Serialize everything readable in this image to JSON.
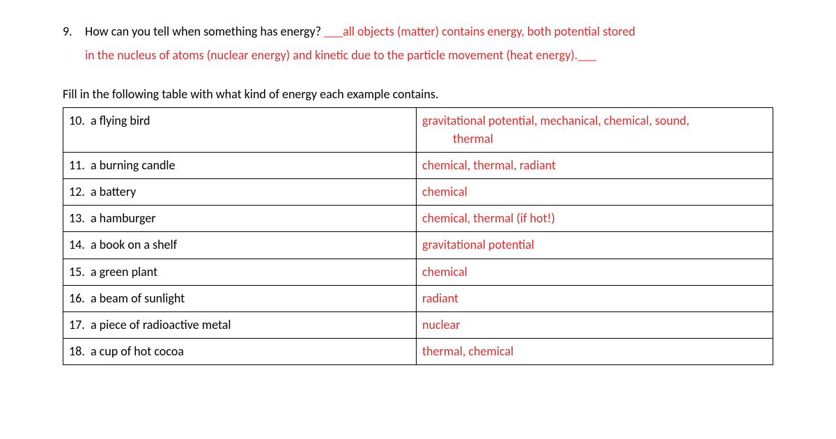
{
  "colors": {
    "text": "#000000",
    "answer": "#d62f2f",
    "background": "#ffffff",
    "border": "#000000"
  },
  "question9": {
    "number": "9.",
    "prompt": "How can you tell when something has energy? ",
    "blank_pre": "___",
    "answer_line1": "all objects (matter) contains energy, both potential stored",
    "answer_line2": "in the nucleus of atoms (nuclear energy) and kinetic due to the particle movement (heat energy).",
    "blank_post": "___"
  },
  "instruction": "Fill in the following table with what kind of energy each example contains.",
  "table": {
    "rows": [
      {
        "num": "10.",
        "item": "a flying bird",
        "answer": "gravitational potential, mechanical, chemical, sound,",
        "answer2": "thermal"
      },
      {
        "num": "11.",
        "item": "a burning candle",
        "answer": "chemical, thermal, radiant"
      },
      {
        "num": "12.",
        "item": "a battery",
        "answer": "chemical"
      },
      {
        "num": "13.",
        "item": "a hamburger",
        "answer": "chemical, thermal (if hot!)"
      },
      {
        "num": "14.",
        "item": "a book on a shelf",
        "answer": "gravitational potential"
      },
      {
        "num": "15.",
        "item": "a green plant",
        "answer": "chemical"
      },
      {
        "num": "16.",
        "item": "a beam of sunlight",
        "answer": "radiant"
      },
      {
        "num": "17.",
        "item": "a piece of radioactive metal",
        "answer": "nuclear"
      },
      {
        "num": "18.",
        "item": "a cup of hot cocoa",
        "answer": "thermal, chemical"
      }
    ]
  }
}
